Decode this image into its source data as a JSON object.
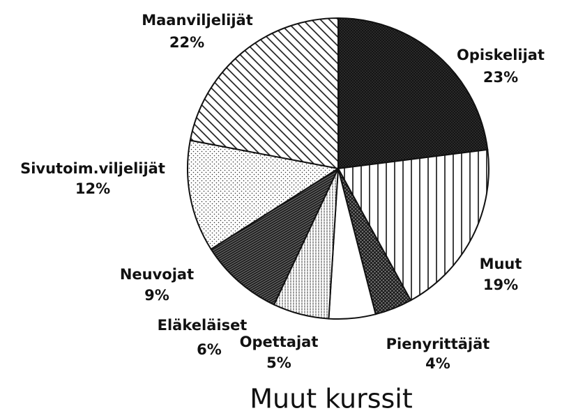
{
  "chart_data": {
    "type": "pie",
    "title": "Muut kurssit",
    "categories": [
      "Opiskelijat",
      "Muut",
      "Pienyrittäjät",
      "Opettajat",
      "Eläkeläiset",
      "Neuvojat",
      "Sivutoim.viljelijät",
      "Maanviljelijät"
    ],
    "values": [
      23,
      19,
      4,
      5,
      6,
      9,
      12,
      22
    ],
    "value_labels": [
      "23%",
      "19%",
      "4%",
      "5%",
      "6%",
      "9%",
      "12%",
      "22%"
    ]
  }
}
